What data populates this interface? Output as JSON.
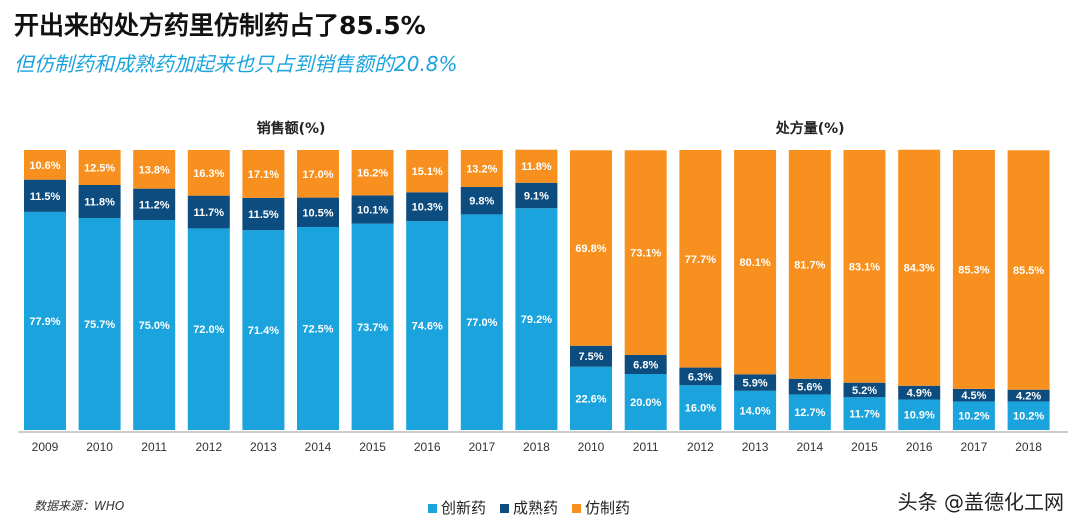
{
  "title": "开出来的处方药里仿制药占了85.5%",
  "subtitle": "但仿制药和成熟药加起来也只占到销售额的20.8%",
  "source": "数据来源：WHO",
  "watermark": "头条 @盖德化工网",
  "colors": {
    "创新药": "#1aa3dc",
    "成熟药": "#0d4c7e",
    "仿制药": "#f7901e"
  },
  "chart_data": [
    {
      "type": "bar",
      "stacked": true,
      "title": "销售额(%)",
      "categories": [
        "2009",
        "2010",
        "2011",
        "2012",
        "2013",
        "2014",
        "2015",
        "2016",
        "2017",
        "2018"
      ],
      "series": [
        {
          "name": "创新药",
          "values": [
            77.9,
            75.7,
            75.0,
            72.0,
            71.4,
            72.5,
            73.7,
            74.6,
            77.0,
            79.2
          ]
        },
        {
          "name": "成熟药",
          "values": [
            11.5,
            11.8,
            11.2,
            11.7,
            11.5,
            10.5,
            10.1,
            10.3,
            9.8,
            9.1
          ]
        },
        {
          "name": "仿制药",
          "values": [
            10.6,
            12.5,
            13.8,
            16.3,
            17.1,
            17.0,
            16.2,
            15.1,
            13.2,
            11.8
          ]
        }
      ],
      "ylim": [
        0,
        100
      ]
    },
    {
      "type": "bar",
      "stacked": true,
      "title": "处方量(%)",
      "categories": [
        "2010",
        "2011",
        "2012",
        "2013",
        "2014",
        "2015",
        "2016",
        "2017",
        "2018"
      ],
      "series": [
        {
          "name": "创新药",
          "values": [
            22.6,
            20.0,
            16.0,
            14.0,
            12.7,
            11.7,
            10.9,
            10.2,
            10.2
          ]
        },
        {
          "name": "成熟药",
          "values": [
            7.5,
            6.8,
            6.3,
            5.9,
            5.6,
            5.2,
            4.9,
            4.5,
            4.2
          ]
        },
        {
          "name": "仿制药",
          "values": [
            69.8,
            73.1,
            77.7,
            80.1,
            81.7,
            83.1,
            84.3,
            85.3,
            85.5
          ]
        }
      ],
      "ylim": [
        0,
        100
      ]
    }
  ],
  "legend": [
    "创新药",
    "成熟药",
    "仿制药"
  ]
}
